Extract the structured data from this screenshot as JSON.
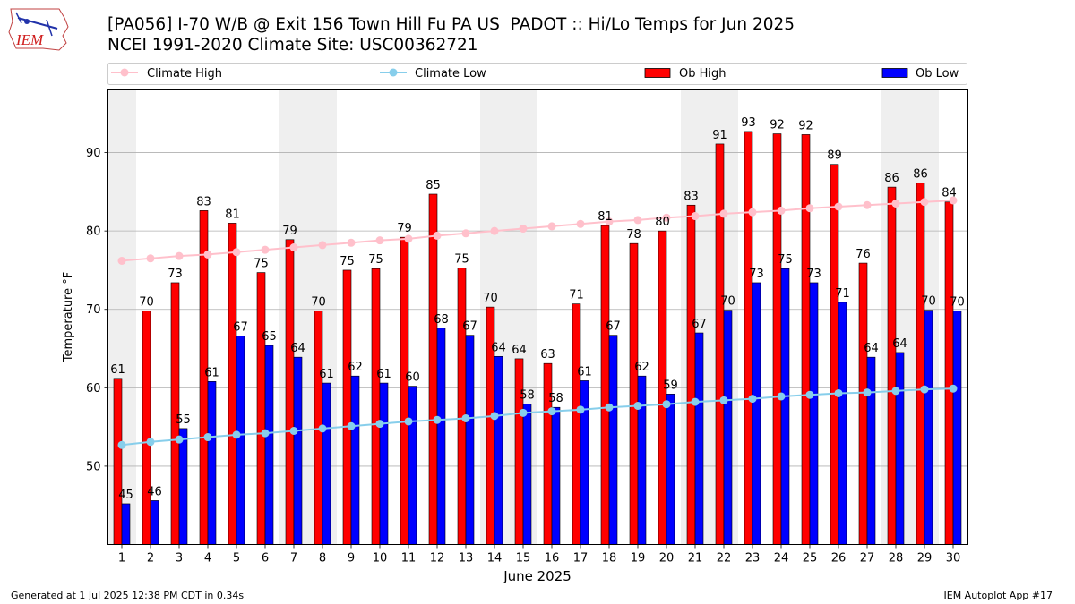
{
  "header": {
    "logo_text": "IEM",
    "title_line1": "[PA056] I-70 W/B @ Exit 156 Town Hill Fu PA US  PADOT :: Hi/Lo Temps for Jun 2025",
    "title_line2": "NCEI 1991-2020 Climate Site: USC00362721"
  },
  "footer": {
    "left": "Generated at 1 Jul 2025 12:38 PM CDT in 0.34s",
    "right": "IEM Autoplot App #17"
  },
  "colors": {
    "climate_high": "#ffc0cb",
    "climate_low": "#87ceeb",
    "ob_high": "#ff0000",
    "ob_low": "#0000ff",
    "weekend_shade": "#efefef",
    "grid": "#b0b0b0"
  },
  "chart_data": {
    "type": "bar",
    "xlabel": "June 2025",
    "ylabel": "Temperature °F",
    "ylim": [
      40,
      98
    ],
    "yticks": [
      50,
      60,
      70,
      80,
      90
    ],
    "grid": "horizontal",
    "legend_position": "top",
    "categories": [
      "1",
      "2",
      "3",
      "4",
      "5",
      "6",
      "7",
      "8",
      "9",
      "10",
      "11",
      "12",
      "13",
      "14",
      "15",
      "16",
      "17",
      "18",
      "19",
      "20",
      "21",
      "22",
      "23",
      "24",
      "25",
      "26",
      "27",
      "28",
      "29",
      "30"
    ],
    "shaded_days": [
      1,
      7,
      8,
      14,
      15,
      21,
      22,
      28,
      29
    ],
    "series": [
      {
        "name": "Climate High",
        "kind": "line",
        "values": [
          76.2,
          76.5,
          76.8,
          77.0,
          77.3,
          77.6,
          77.9,
          78.2,
          78.5,
          78.8,
          79.0,
          79.4,
          79.7,
          80.0,
          80.3,
          80.6,
          80.9,
          81.2,
          81.4,
          81.7,
          81.9,
          82.2,
          82.4,
          82.6,
          82.9,
          83.1,
          83.3,
          83.5,
          83.7,
          83.9
        ]
      },
      {
        "name": "Climate Low",
        "kind": "line",
        "values": [
          52.7,
          53.1,
          53.4,
          53.7,
          54.0,
          54.2,
          54.5,
          54.8,
          55.1,
          55.4,
          55.7,
          55.9,
          56.1,
          56.4,
          56.8,
          57.0,
          57.2,
          57.5,
          57.7,
          57.9,
          58.2,
          58.4,
          58.6,
          58.9,
          59.1,
          59.3,
          59.4,
          59.6,
          59.8,
          59.9
        ]
      },
      {
        "name": "Ob High",
        "kind": "bar",
        "values": [
          61.2,
          69.8,
          73.4,
          82.6,
          81.0,
          74.7,
          78.9,
          69.8,
          75.0,
          75.2,
          79.2,
          84.7,
          75.3,
          70.3,
          63.7,
          63.1,
          70.7,
          80.7,
          78.4,
          80.0,
          83.3,
          91.1,
          92.7,
          92.4,
          92.3,
          88.5,
          75.9,
          85.6,
          86.1,
          83.7
        ],
        "labels": [
          "61",
          "70",
          "73",
          "83",
          "81",
          "75",
          "79",
          "70",
          "75",
          "75",
          "79",
          "85",
          "75",
          "70",
          "64",
          "63",
          "71",
          "81",
          "78",
          "80",
          "83",
          "91",
          "93",
          "92",
          "92",
          "89",
          "76",
          "86",
          "86",
          "84"
        ]
      },
      {
        "name": "Ob Low",
        "kind": "bar",
        "values": [
          45.2,
          45.6,
          54.8,
          60.8,
          66.6,
          65.4,
          63.9,
          60.6,
          61.5,
          60.6,
          60.2,
          67.6,
          66.7,
          64.0,
          57.9,
          57.5,
          60.9,
          66.7,
          61.5,
          59.2,
          67.0,
          69.9,
          73.4,
          75.2,
          73.4,
          70.9,
          63.9,
          64.5,
          69.9,
          69.8
        ],
        "labels": [
          "45",
          "46",
          "55",
          "61",
          "67",
          "65",
          "64",
          "61",
          "62",
          "61",
          "60",
          "68",
          "67",
          "64",
          "58",
          "58",
          "61",
          "67",
          "62",
          "59",
          "67",
          "70",
          "73",
          "75",
          "73",
          "71",
          "64",
          "64",
          "70",
          "70"
        ]
      }
    ]
  }
}
